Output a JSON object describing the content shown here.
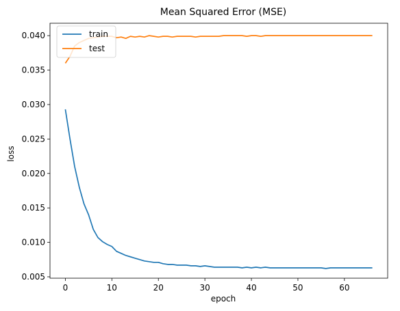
{
  "chart_data": {
    "type": "line",
    "title": "Mean Squared Error (MSE)",
    "xlabel": "epoch",
    "ylabel": "loss",
    "xlim": [
      -3.3,
      69.3
    ],
    "ylim": [
      0.0048,
      0.0418
    ],
    "xticks": [
      0,
      10,
      20,
      30,
      40,
      50,
      60
    ],
    "xtick_labels": [
      "0",
      "10",
      "20",
      "30",
      "40",
      "50",
      "60"
    ],
    "yticks": [
      0.005,
      0.01,
      0.015,
      0.02,
      0.025,
      0.03,
      0.035,
      0.04
    ],
    "ytick_labels": [
      "0.005",
      "0.010",
      "0.015",
      "0.020",
      "0.025",
      "0.030",
      "0.035",
      "0.040"
    ],
    "grid": false,
    "legend_position": "top-left",
    "series": [
      {
        "name": "train",
        "color": "#1f77b4",
        "values": [
          0.0293,
          0.025,
          0.021,
          0.018,
          0.0156,
          0.014,
          0.0119,
          0.0107,
          0.0101,
          0.0097,
          0.0094,
          0.0087,
          0.0084,
          0.0081,
          0.0079,
          0.0077,
          0.0075,
          0.0073,
          0.0072,
          0.0071,
          0.0071,
          0.0069,
          0.0068,
          0.0068,
          0.0067,
          0.0067,
          0.0067,
          0.0066,
          0.0066,
          0.0065,
          0.0066,
          0.0065,
          0.0064,
          0.0064,
          0.0064,
          0.0064,
          0.0064,
          0.0064,
          0.0063,
          0.0064,
          0.0063,
          0.0064,
          0.0063,
          0.0064,
          0.0063,
          0.0063,
          0.0063,
          0.0063,
          0.0063,
          0.0063,
          0.0063,
          0.0063,
          0.0063,
          0.0063,
          0.0063,
          0.0063,
          0.0062,
          0.0063,
          0.0063,
          0.0063,
          0.0063,
          0.0063,
          0.0063,
          0.0063,
          0.0063,
          0.0063,
          0.0063
        ]
      },
      {
        "name": "test",
        "color": "#ff7f0e",
        "values": [
          0.036,
          0.037,
          0.0385,
          0.039,
          0.0393,
          0.0396,
          0.0397,
          0.0398,
          0.0399,
          0.0399,
          0.0399,
          0.0397,
          0.0398,
          0.0396,
          0.0399,
          0.0398,
          0.0399,
          0.0398,
          0.04,
          0.0399,
          0.0398,
          0.0399,
          0.0399,
          0.0398,
          0.0399,
          0.0399,
          0.0399,
          0.0399,
          0.0398,
          0.0399,
          0.0399,
          0.0399,
          0.0399,
          0.0399,
          0.04,
          0.04,
          0.04,
          0.04,
          0.04,
          0.0399,
          0.04,
          0.04,
          0.0399,
          0.04,
          0.04,
          0.04,
          0.04,
          0.04,
          0.04,
          0.04,
          0.04,
          0.04,
          0.04,
          0.04,
          0.04,
          0.04,
          0.04,
          0.04,
          0.04,
          0.04,
          0.04,
          0.04,
          0.04,
          0.04,
          0.04,
          0.04,
          0.04
        ]
      }
    ]
  }
}
